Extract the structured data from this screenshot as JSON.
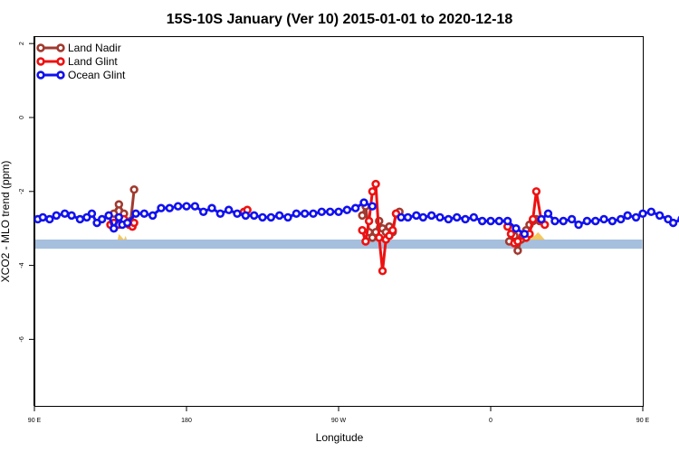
{
  "chart_data": {
    "type": "line",
    "title": "15S-10S January (Ver 10)   2015-01-01 to 2020-12-18",
    "xlabel": "Longitude",
    "ylabel": "XCO2 - MLO trend (ppm)",
    "xlim": [
      90,
      450
    ],
    "ylim": [
      -7.8,
      2.2
    ],
    "x_ticks": [
      {
        "value": 90,
        "label": "90 E"
      },
      {
        "value": 180,
        "label": "180"
      },
      {
        "value": 270,
        "label": "90 W"
      },
      {
        "value": 360,
        "label": "0"
      },
      {
        "value": 450,
        "label": "90 E"
      },
      {
        "value": 540,
        "label": "180"
      }
    ],
    "y_ticks": [
      {
        "value": 2,
        "label": "2"
      },
      {
        "value": 0,
        "label": "0"
      },
      {
        "value": -2,
        "label": "-2"
      },
      {
        "value": -4,
        "label": "-4"
      },
      {
        "value": -6,
        "label": "-6"
      }
    ],
    "xaxis_span": [
      90,
      540
    ],
    "legend_position": "top-left",
    "grid": false,
    "band": {
      "y_min": -3.55,
      "y_max": -3.3,
      "color": "#a5bfdd"
    },
    "land_fill_color": "#f5c85c",
    "land_fill": [
      {
        "x": [
          131,
          133,
          135,
          137,
          139,
          140,
          143,
          144,
          146
        ],
        "y": [
          -3.5,
          -3.4,
          -3.45,
          -3.3,
          -3.35,
          -3.15,
          -3.3,
          -3.2,
          -3.5
        ]
      },
      {
        "x": [
          286,
          288,
          290,
          292,
          294,
          296,
          298,
          300,
          302,
          304
        ],
        "y": [
          -3.5,
          -3.35,
          -3.3,
          -3.35,
          -3.2,
          -3.4,
          -3.25,
          -3.45,
          -3.3,
          -3.5
        ]
      },
      {
        "x": [
          360,
          361
        ],
        "y": [
          -3.5,
          -3.3
        ]
      },
      {
        "x": [
          376,
          378,
          380,
          382,
          384,
          386,
          388,
          390,
          392,
          394,
          395
        ],
        "y": [
          -3.5,
          -3.35,
          -3.3,
          -3.25,
          -3.15,
          -3.2,
          -3.1,
          -3.2,
          -3.3,
          -3.4,
          -3.5
        ]
      },
      {
        "x": [
          488,
          489,
          490,
          492,
          494,
          495,
          497,
          499
        ],
        "y": [
          -3.5,
          -3.3,
          -3.4,
          -3.25,
          -3.35,
          -3.2,
          -3.4,
          -3.5
        ]
      }
    ],
    "series": [
      {
        "name": "Land Nadir",
        "color": "#a03a30",
        "segments": [
          {
            "x": [
              137,
              140,
              143
            ],
            "y": [
              -2.6,
              -2.35,
              -2.6
            ]
          },
          {
            "x": [
              147,
              149
            ],
            "y": [
              -2.8,
              -1.95
            ]
          },
          {
            "x": [
              284,
              286,
              288,
              290,
              292,
              294,
              296,
              298,
              300,
              302,
              304,
              306
            ],
            "y": [
              -2.65,
              -2.4,
              -3.1,
              -3.25,
              -3.1,
              -2.8,
              -3.0,
              -3.1,
              -2.95,
              -3.1,
              -2.6,
              -2.55
            ]
          },
          {
            "x": [
              371,
              374,
              376,
              378,
              381,
              383,
              385,
              387,
              389
            ],
            "y": [
              -3.35,
              -3.2,
              -3.6,
              -3.3,
              -3.05,
              -2.9,
              -2.8,
              -2.75,
              -2.8
            ]
          },
          {
            "x": [
              493,
              496,
              498,
              501,
              503
            ],
            "y": [
              -2.65,
              -2.35,
              -2.6,
              -2.8,
              -1.95
            ]
          }
        ]
      },
      {
        "name": "Land Glint",
        "color": "#ee1111",
        "segments": [
          {
            "x": [
              135,
              137,
              140,
              143,
              146,
              148,
              149
            ],
            "y": [
              -2.9,
              -2.85,
              -2.9,
              -2.75,
              -2.9,
              -2.95,
              -2.85
            ]
          },
          {
            "x": [
              214,
              216
            ],
            "y": [
              -2.55,
              -2.5
            ]
          },
          {
            "x": [
              284,
              286,
              288,
              290,
              292,
              294,
              296,
              298,
              300,
              302,
              304
            ],
            "y": [
              -3.05,
              -3.35,
              -2.8,
              -2.0,
              -1.8,
              -3.25,
              -4.15,
              -3.3,
              -3.2,
              -3.05,
              -2.6
            ]
          },
          {
            "x": [
              370,
              372,
              374,
              376,
              379,
              381,
              383,
              385,
              387,
              390,
              392
            ],
            "y": [
              -2.95,
              -3.15,
              -3.4,
              -3.35,
              -3.2,
              -3.25,
              -3.15,
              -2.75,
              -2.0,
              -2.8,
              -2.9
            ]
          },
          {
            "x": [
              486,
              488,
              491,
              494,
              497,
              500,
              502
            ],
            "y": [
              -2.9,
              -2.85,
              -2.9,
              -2.75,
              -2.9,
              -2.95,
              -2.85
            ]
          }
        ]
      },
      {
        "name": "Ocean Glint",
        "color": "#1111ee",
        "segments": [
          {
            "x": [
              92,
              95,
              99,
              103,
              108,
              112,
              117,
              121,
              124,
              127,
              130,
              134,
              137,
              140,
              142,
              145,
              150,
              155,
              160,
              165,
              170,
              175,
              180,
              185,
              190,
              195,
              200,
              205,
              210,
              215,
              220,
              225,
              230,
              235,
              240,
              245,
              250,
              255,
              260,
              265,
              270,
              275,
              280,
              285,
              290
            ],
            "y": [
              -2.75,
              -2.7,
              -2.75,
              -2.65,
              -2.6,
              -2.65,
              -2.75,
              -2.7,
              -2.6,
              -2.85,
              -2.75,
              -2.65,
              -3.0,
              -2.7,
              -2.9,
              -2.85,
              -2.6,
              -2.6,
              -2.65,
              -2.45,
              -2.45,
              -2.4,
              -2.4,
              -2.4,
              -2.55,
              -2.45,
              -2.6,
              -2.5,
              -2.6,
              -2.65,
              -2.65,
              -2.7,
              -2.7,
              -2.65,
              -2.7,
              -2.6,
              -2.6,
              -2.6,
              -2.55,
              -2.55,
              -2.55,
              -2.5,
              -2.45,
              -2.3,
              -2.4
            ]
          },
          {
            "x": [
              307,
              311,
              316,
              320,
              325,
              330,
              335,
              340,
              345,
              350,
              355,
              360,
              365,
              370,
              375,
              380
            ],
            "y": [
              -2.7,
              -2.7,
              -2.65,
              -2.7,
              -2.65,
              -2.7,
              -2.75,
              -2.7,
              -2.75,
              -2.7,
              -2.8,
              -2.8,
              -2.8,
              -2.8,
              -3.0,
              -3.15
            ]
          },
          {
            "x": [
              390,
              394,
              398,
              403,
              408,
              412,
              417,
              422,
              427,
              432,
              437,
              441,
              446,
              450,
              455,
              460,
              465,
              468,
              473,
              478,
              482,
              486,
              488,
              491,
              494,
              496,
              499,
              504,
              508,
              512,
              517,
              522,
              527
            ],
            "y": [
              -2.75,
              -2.6,
              -2.8,
              -2.8,
              -2.75,
              -2.9,
              -2.8,
              -2.8,
              -2.75,
              -2.8,
              -2.75,
              -2.65,
              -2.7,
              -2.6,
              -2.55,
              -2.65,
              -2.75,
              -2.85,
              -2.75,
              -2.65,
              -2.6,
              -2.8,
              -2.6,
              -2.85,
              -2.95,
              -2.7,
              -2.85,
              -2.8,
              -2.55,
              -2.55,
              -2.6,
              -2.45,
              -2.45
            ]
          }
        ]
      }
    ]
  }
}
